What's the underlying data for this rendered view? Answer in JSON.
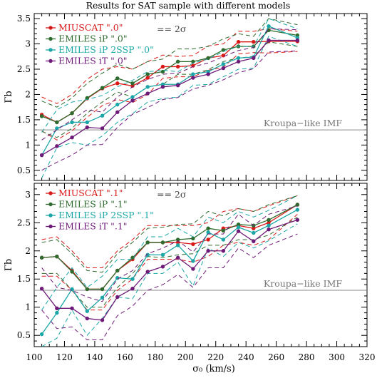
{
  "chart_data": {
    "type": "line",
    "title": "Results for SAT sample with different models",
    "xlabel": "σ₀ (km/s)",
    "xlim": [
      100,
      320
    ],
    "xticks": [
      100,
      120,
      140,
      160,
      180,
      200,
      220,
      240,
      260,
      280,
      300,
      320
    ],
    "x": [
      105,
      115,
      125,
      135,
      145,
      155,
      165,
      175,
      185,
      195,
      205,
      215,
      225,
      235,
      245,
      255,
      274
    ],
    "panels": [
      {
        "ylabel": "Γb",
        "ylim": [
          0.3,
          3.6
        ],
        "yticks": [
          0.5,
          1,
          1.5,
          2,
          2.5,
          3,
          3.5
        ],
        "reference_line": {
          "y": 1.3,
          "label": "Kroupa−like IMF"
        },
        "error_note": "== 2σ",
        "series": [
          {
            "name": "MIUSCAT \".0\"",
            "color": "#d91818",
            "values": [
              1.6,
              1.45,
              1.63,
              1.92,
              2.12,
              2.22,
              2.17,
              2.33,
              2.55,
              2.55,
              2.57,
              2.72,
              2.77,
              3.04,
              3.04,
              3.05,
              3.05
            ],
            "upper": [
              1.95,
              1.82,
              2.0,
              2.3,
              2.5,
              2.55,
              2.5,
              2.65,
              2.78,
              2.75,
              2.77,
              2.96,
              3.0,
              3.25,
              3.25,
              3.3,
              3.25
            ],
            "lower": [
              1.28,
              1.1,
              1.28,
              1.55,
              1.78,
              1.9,
              1.84,
              2.0,
              2.32,
              2.35,
              2.35,
              2.48,
              2.54,
              2.8,
              2.83,
              2.82,
              2.85
            ]
          },
          {
            "name": "EMILES iP \".0\"",
            "color": "#2e6b2e",
            "values": [
              1.57,
              1.45,
              1.63,
              1.93,
              2.13,
              2.32,
              2.22,
              2.4,
              2.45,
              2.65,
              2.65,
              2.72,
              2.88,
              2.95,
              2.95,
              3.27,
              3.17
            ],
            "upper": [
              1.87,
              1.75,
              1.93,
              2.22,
              2.42,
              2.6,
              2.5,
              2.65,
              2.7,
              2.9,
              2.9,
              2.95,
              3.1,
              3.2,
              3.15,
              3.5,
              3.38
            ],
            "lower": [
              1.27,
              1.15,
              1.33,
              1.63,
              1.85,
              2.05,
              1.95,
              2.15,
              2.2,
              2.4,
              2.4,
              2.49,
              2.65,
              2.72,
              2.75,
              3.04,
              2.95
            ]
          },
          {
            "name": "EMILES iP 2SSP \".0\"",
            "color": "#1aa6a6",
            "values": [
              0.8,
              1.33,
              1.45,
              1.45,
              1.58,
              1.8,
              1.95,
              2.15,
              2.2,
              2.2,
              2.4,
              2.45,
              2.6,
              2.72,
              2.74,
              3.35,
              3.12
            ],
            "upper": [
              1.25,
              1.7,
              1.85,
              1.9,
              1.98,
              2.15,
              2.28,
              2.45,
              2.48,
              2.45,
              2.62,
              2.7,
              2.85,
              2.95,
              2.95,
              3.5,
              3.3
            ],
            "lower": [
              0.35,
              0.95,
              1.05,
              1.0,
              1.18,
              1.45,
              1.62,
              1.85,
              1.92,
              1.95,
              2.18,
              2.2,
              2.35,
              2.5,
              2.52,
              3.15,
              2.95
            ]
          },
          {
            "name": "EMILES iT \".0\"",
            "color": "#6e1a78",
            "values": [
              0.8,
              0.98,
              1.15,
              1.35,
              1.33,
              1.65,
              1.88,
              2.02,
              2.15,
              2.18,
              2.33,
              2.4,
              2.52,
              2.65,
              2.72,
              3.07,
              3.07
            ],
            "upper": [
              1.1,
              1.3,
              1.5,
              1.7,
              1.65,
              1.95,
              2.15,
              2.3,
              2.4,
              2.42,
              2.55,
              2.62,
              2.75,
              2.87,
              2.93,
              3.3,
              3.28
            ],
            "lower": [
              0.5,
              0.66,
              0.8,
              1.0,
              1.01,
              1.35,
              1.61,
              1.74,
              1.9,
              1.94,
              2.11,
              2.18,
              2.29,
              2.43,
              2.51,
              2.84,
              2.86
            ]
          }
        ]
      },
      {
        "ylabel": "Γb",
        "ylim": [
          0.3,
          3.2
        ],
        "yticks": [
          0.5,
          1,
          1.5,
          2,
          2.5,
          3
        ],
        "reference_line": {
          "y": 1.3,
          "label": "Kroupa−like IMF"
        },
        "error_note": "== 2σ",
        "series": [
          {
            "name": "MIUSCAT \".1\"",
            "color": "#d91818",
            "values": [
              1.88,
              1.9,
              1.65,
              1.32,
              1.32,
              1.65,
              1.85,
              2.15,
              2.15,
              2.15,
              2.12,
              2.2,
              2.4,
              2.45,
              2.4,
              2.5,
              2.82
            ],
            "upper": [
              2.2,
              2.25,
              2.0,
              1.7,
              1.7,
              2.0,
              2.2,
              2.45,
              2.45,
              2.45,
              2.45,
              2.5,
              2.7,
              2.75,
              2.7,
              2.8,
              2.98
            ],
            "lower": [
              1.55,
              1.55,
              1.3,
              0.95,
              0.95,
              1.3,
              1.5,
              1.85,
              1.85,
              1.85,
              1.8,
              1.9,
              2.1,
              2.15,
              2.1,
              2.2,
              2.65
            ]
          },
          {
            "name": "EMILES iP \".1\"",
            "color": "#2e6b2e",
            "values": [
              1.88,
              1.9,
              1.63,
              1.32,
              1.32,
              1.65,
              1.88,
              2.15,
              2.15,
              2.2,
              2.22,
              2.4,
              2.36,
              2.47,
              2.45,
              2.55,
              2.82
            ],
            "upper": [
              2.15,
              2.2,
              1.95,
              1.65,
              1.62,
              1.95,
              2.15,
              2.4,
              2.42,
              2.47,
              2.48,
              2.7,
              2.62,
              2.75,
              2.7,
              2.82,
              2.98
            ],
            "lower": [
              1.6,
              1.6,
              1.3,
              1.0,
              1.0,
              1.35,
              1.6,
              1.9,
              1.88,
              1.93,
              1.95,
              2.1,
              2.1,
              2.2,
              2.2,
              2.28,
              2.6
            ]
          },
          {
            "name": "EMILES iP 2SSP \".1\"",
            "color": "#1aa6a6",
            "values": [
              0.52,
              0.9,
              1.32,
              0.93,
              1.17,
              1.52,
              1.5,
              1.93,
              1.93,
              2.1,
              1.82,
              2.33,
              2.2,
              2.42,
              2.32,
              2.45,
              2.73
            ],
            "upper": [
              0.95,
              1.35,
              1.7,
              1.35,
              1.55,
              1.85,
              1.85,
              2.25,
              2.25,
              2.4,
              2.25,
              2.6,
              2.5,
              2.7,
              2.6,
              2.72,
              2.98
            ],
            "lower": [
              0.3,
              0.45,
              0.95,
              0.5,
              0.8,
              1.18,
              1.15,
              1.6,
              1.6,
              1.8,
              1.38,
              2.05,
              1.9,
              2.15,
              2.05,
              2.18,
              2.48
            ]
          },
          {
            "name": "EMILES iT \".1\"",
            "color": "#6e1a78",
            "values": [
              1.33,
              0.98,
              0.98,
              0.8,
              0.77,
              1.18,
              1.33,
              1.63,
              1.72,
              1.88,
              1.68,
              2.0,
              2.0,
              2.35,
              2.17,
              2.38,
              2.55
            ],
            "upper": [
              1.7,
              1.35,
              1.3,
              1.18,
              1.1,
              1.5,
              1.65,
              1.95,
              2.05,
              2.18,
              1.98,
              2.3,
              2.3,
              2.65,
              2.45,
              2.65,
              2.8
            ],
            "lower": [
              0.95,
              0.62,
              0.65,
              0.42,
              0.42,
              0.85,
              1.02,
              1.3,
              1.4,
              1.58,
              1.35,
              1.7,
              1.7,
              2.05,
              1.88,
              2.1,
              2.3
            ]
          }
        ]
      }
    ]
  }
}
